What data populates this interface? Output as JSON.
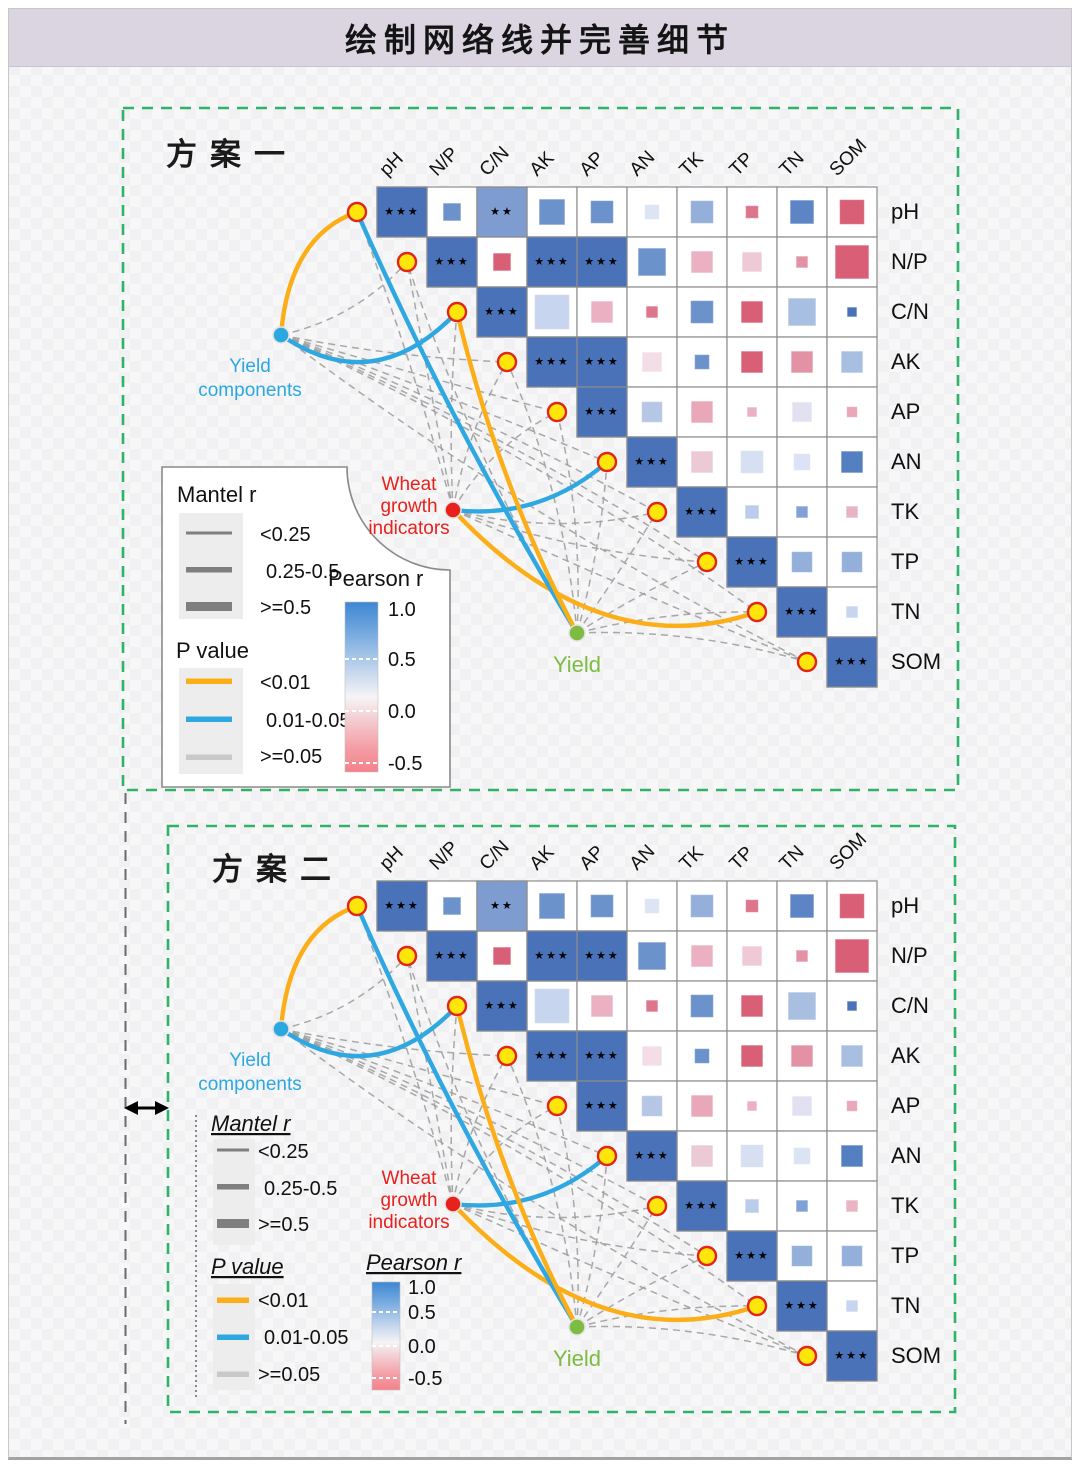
{
  "title": "绘制网络线并完善细节",
  "panel1_label": "方案一",
  "panel2_label": "方案二",
  "nodes": [
    {
      "id": "yc",
      "label": "Yield components",
      "label_lines": [
        "Yield",
        "components"
      ],
      "color": "#2CA8E0"
    },
    {
      "id": "wgi",
      "label": "Wheat growth indicators",
      "label_lines": [
        "Wheat",
        "growth",
        "indicators"
      ],
      "color": "#E8211D"
    },
    {
      "id": "yld",
      "label": "Yield",
      "label_lines": [
        "Yield"
      ],
      "color": "#7DBB42"
    }
  ],
  "legend": {
    "mantel_title": "Mantel r",
    "mantel_items": [
      "<0.25",
      "0.25-0.5",
      ">=0.5"
    ],
    "mantel_color": "#7F7F7F",
    "p_title": "P value",
    "p_items": [
      {
        "label": "<0.01",
        "color": "#FBAE17"
      },
      {
        "label": "0.01-0.05",
        "color": "#2FA8E1"
      },
      {
        "label": ">=0.05",
        "color": "#C9C9C9"
      }
    ],
    "pearson_title": "Pearson r",
    "pearson_ticks": [
      "1.0",
      "0.5",
      "0.0",
      "-0.5"
    ],
    "pearson_top_color": "#3E86D3",
    "pearson_bottom_color": "#F5818A"
  },
  "chart_data": {
    "type": "heatmap",
    "subtype": "correlation-matrix-with-mantel-network",
    "variables": [
      "pH",
      "N/P",
      "C/N",
      "AK",
      "AP",
      "AN",
      "TK",
      "TP",
      "TN",
      "SOM"
    ],
    "significance_marks": {
      "3": "***",
      "2": "**"
    },
    "significant_cells": [
      {
        "r": 0,
        "c": 0,
        "stars": 3,
        "color": "#4A72B8"
      },
      {
        "r": 0,
        "c": 2,
        "stars": 2,
        "color": "#7E9CD0"
      },
      {
        "r": 1,
        "c": 1,
        "stars": 3,
        "color": "#4A72B8"
      },
      {
        "r": 1,
        "c": 3,
        "stars": 3,
        "color": "#4A72B8"
      },
      {
        "r": 1,
        "c": 4,
        "stars": 3,
        "color": "#4A72B8"
      },
      {
        "r": 2,
        "c": 2,
        "stars": 3,
        "color": "#4A72B8"
      },
      {
        "r": 3,
        "c": 3,
        "stars": 3,
        "color": "#4A72B8"
      },
      {
        "r": 3,
        "c": 4,
        "stars": 3,
        "color": "#4A72B8"
      },
      {
        "r": 4,
        "c": 4,
        "stars": 3,
        "color": "#4A72B8"
      },
      {
        "r": 5,
        "c": 5,
        "stars": 3,
        "color": "#4A72B8"
      },
      {
        "r": 6,
        "c": 6,
        "stars": 3,
        "color": "#4A72B8"
      },
      {
        "r": 7,
        "c": 7,
        "stars": 3,
        "color": "#4A72B8"
      },
      {
        "r": 8,
        "c": 8,
        "stars": 3,
        "color": "#4A72B8"
      },
      {
        "r": 9,
        "c": 9,
        "stars": 3,
        "color": "#4A72B8"
      }
    ],
    "squares": [
      {
        "r": 0,
        "c": 1,
        "color": "#6C92CB",
        "size": 0.36
      },
      {
        "r": 0,
        "c": 3,
        "color": "#6C92CB",
        "size": 0.52
      },
      {
        "r": 0,
        "c": 4,
        "color": "#6C92CB",
        "size": 0.46
      },
      {
        "r": 0,
        "c": 5,
        "color": "#DDE4F4",
        "size": 0.3
      },
      {
        "r": 0,
        "c": 6,
        "color": "#93AFDA",
        "size": 0.46
      },
      {
        "r": 0,
        "c": 7,
        "color": "#DD758B",
        "size": 0.26
      },
      {
        "r": 0,
        "c": 8,
        "color": "#5D84C4",
        "size": 0.48
      },
      {
        "r": 0,
        "c": 9,
        "color": "#D95F77",
        "size": 0.5
      },
      {
        "r": 1,
        "c": 2,
        "color": "#D95F77",
        "size": 0.36
      },
      {
        "r": 1,
        "c": 5,
        "color": "#6C92CB",
        "size": 0.56
      },
      {
        "r": 1,
        "c": 6,
        "color": "#EBB0C2",
        "size": 0.44
      },
      {
        "r": 1,
        "c": 7,
        "color": "#EFC9D6",
        "size": 0.4
      },
      {
        "r": 1,
        "c": 8,
        "color": "#E392A6",
        "size": 0.24
      },
      {
        "r": 1,
        "c": 9,
        "color": "#D95F77",
        "size": 0.68
      },
      {
        "r": 2,
        "c": 3,
        "color": "#C8D5EE",
        "size": 0.7
      },
      {
        "r": 2,
        "c": 4,
        "color": "#EBB0C2",
        "size": 0.44
      },
      {
        "r": 2,
        "c": 5,
        "color": "#DD758B",
        "size": 0.24
      },
      {
        "r": 2,
        "c": 6,
        "color": "#6C92CB",
        "size": 0.46
      },
      {
        "r": 2,
        "c": 7,
        "color": "#D95F77",
        "size": 0.44
      },
      {
        "r": 2,
        "c": 8,
        "color": "#A9BFE2",
        "size": 0.56
      },
      {
        "r": 2,
        "c": 9,
        "color": "#4A72B8",
        "size": 0.2
      },
      {
        "r": 3,
        "c": 5,
        "color": "#F3DEE7",
        "size": 0.4
      },
      {
        "r": 3,
        "c": 6,
        "color": "#6C92CB",
        "size": 0.3
      },
      {
        "r": 3,
        "c": 7,
        "color": "#D95F77",
        "size": 0.44
      },
      {
        "r": 3,
        "c": 8,
        "color": "#E392A6",
        "size": 0.44
      },
      {
        "r": 3,
        "c": 9,
        "color": "#A9BFE2",
        "size": 0.44
      },
      {
        "r": 4,
        "c": 5,
        "color": "#B6C7E6",
        "size": 0.42
      },
      {
        "r": 4,
        "c": 6,
        "color": "#E8A8BA",
        "size": 0.44
      },
      {
        "r": 4,
        "c": 7,
        "color": "#EBB0C2",
        "size": 0.2
      },
      {
        "r": 4,
        "c": 8,
        "color": "#E2E1F1",
        "size": 0.4
      },
      {
        "r": 4,
        "c": 9,
        "color": "#E8A8BA",
        "size": 0.22
      },
      {
        "r": 5,
        "c": 6,
        "color": "#EBCAD6",
        "size": 0.44
      },
      {
        "r": 5,
        "c": 7,
        "color": "#D7DFF2",
        "size": 0.46
      },
      {
        "r": 5,
        "c": 8,
        "color": "#DCE3F4",
        "size": 0.34
      },
      {
        "r": 5,
        "c": 9,
        "color": "#5480C1",
        "size": 0.44
      },
      {
        "r": 6,
        "c": 7,
        "color": "#B9CCE9",
        "size": 0.28
      },
      {
        "r": 6,
        "c": 8,
        "color": "#7FA1D3",
        "size": 0.24
      },
      {
        "r": 6,
        "c": 9,
        "color": "#E8B4C4",
        "size": 0.24
      },
      {
        "r": 7,
        "c": 8,
        "color": "#93AFDA",
        "size": 0.42
      },
      {
        "r": 7,
        "c": 9,
        "color": "#93AFDA",
        "size": 0.42
      },
      {
        "r": 8,
        "c": 9,
        "color": "#C8D5EE",
        "size": 0.24
      }
    ],
    "mantel_edges": {
      "significant": [
        {
          "source": "Yield components",
          "target": "pH",
          "p": "<0.01"
        },
        {
          "source": "Yield components",
          "target": "C/N",
          "p": "0.01-0.05"
        },
        {
          "source": "Wheat growth indicators",
          "target": "AN",
          "p": "0.01-0.05"
        },
        {
          "source": "Wheat growth indicators",
          "target": "TN",
          "p": "<0.01"
        },
        {
          "source": "Yield",
          "target": "pH",
          "p": "0.01-0.05"
        },
        {
          "source": "Yield",
          "target": "C/N",
          "p": "<0.01"
        }
      ],
      "nonsignificant": [
        {
          "source": "Yield components",
          "p": ">=0.05",
          "targets": [
            "N/P",
            "AK",
            "AP",
            "AN",
            "TK",
            "TP",
            "TN",
            "SOM"
          ]
        },
        {
          "source": "Wheat growth indicators",
          "p": ">=0.05",
          "targets": [
            "pH",
            "N/P",
            "C/N",
            "AK",
            "AP",
            "TK",
            "TP",
            "SOM"
          ]
        },
        {
          "source": "Yield",
          "p": ">=0.05",
          "targets": [
            "N/P",
            "AK",
            "AP",
            "AN",
            "TK",
            "TP",
            "TN",
            "SOM"
          ]
        }
      ]
    }
  }
}
